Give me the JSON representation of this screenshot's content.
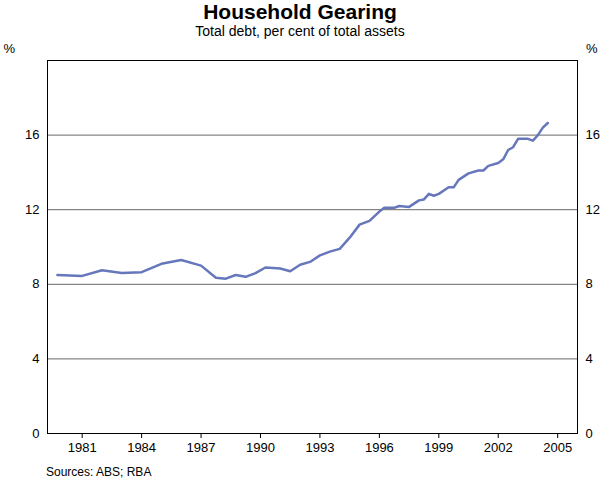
{
  "chart_data": {
    "type": "line",
    "title": "Household Gearing",
    "subtitle": "Total debt, per cent of total assets",
    "ylabel": "%",
    "source": "Sources: ABS; RBA",
    "color": "#6677bb",
    "grid": true,
    "x": [
      1979.75,
      1981,
      1982,
      1983,
      1984,
      1985,
      1986,
      1987,
      1987.75,
      1988.25,
      1988.75,
      1989.25,
      1989.75,
      1990.25,
      1991,
      1991.5,
      1992,
      1992.5,
      1993,
      1993.5,
      1994,
      1994.5,
      1995,
      1995.5,
      1996,
      1996.25,
      1996.75,
      1997,
      1997.5,
      1998,
      1998.25,
      1998.5,
      1998.75,
      1999,
      1999.5,
      1999.75,
      2000,
      2000.5,
      2001,
      2001.25,
      2001.5,
      2002,
      2002.25,
      2002.5,
      2002.75,
      2003,
      2003.5,
      2003.75,
      2004,
      2004.25,
      2004.5
    ],
    "values": [
      8.5,
      8.45,
      8.75,
      8.6,
      8.65,
      9.1,
      9.3,
      9.0,
      8.35,
      8.3,
      8.5,
      8.4,
      8.6,
      8.9,
      8.85,
      8.7,
      9.05,
      9.2,
      9.55,
      9.75,
      9.9,
      10.5,
      11.2,
      11.4,
      11.9,
      12.1,
      12.1,
      12.2,
      12.15,
      12.5,
      12.55,
      12.85,
      12.75,
      12.85,
      13.2,
      13.2,
      13.6,
      13.95,
      14.1,
      14.1,
      14.35,
      14.5,
      14.7,
      15.2,
      15.35,
      15.8,
      15.8,
      15.7,
      16.0,
      16.4,
      16.65
    ],
    "xlim": [
      1979.25,
      2006
    ],
    "xticks": [
      1981,
      1984,
      1987,
      1990,
      1993,
      1996,
      1999,
      2002,
      2005
    ],
    "ylim": [
      0,
      20
    ],
    "yticks": [
      0,
      4,
      8,
      12,
      16
    ]
  }
}
